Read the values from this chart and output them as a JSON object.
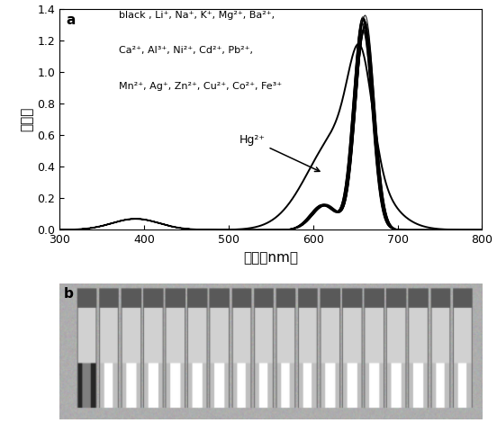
{
  "title_a": "a",
  "title_b": "b",
  "xlabel": "波长（nm）",
  "ylabel": "吸光度",
  "xlim": [
    300,
    800
  ],
  "ylim": [
    0.0,
    1.4
  ],
  "xticks": [
    300,
    400,
    500,
    600,
    700,
    800
  ],
  "yticks": [
    0.0,
    0.2,
    0.4,
    0.6,
    0.8,
    1.0,
    1.2,
    1.4
  ],
  "legend_line1": "black , Li⁺, Na⁺, K⁺, Mg²⁺, Ba²⁺,",
  "legend_line2": "Ca²⁺, Al³⁺, Ni²⁺, Cd²⁺, Pb²⁺,",
  "legend_line3": "Mn²⁺, Ag⁺, Zn²⁺, Cu²⁺, Co²⁺, Fe³⁺",
  "hg_label": "Hg²⁺",
  "bg_color": "#ffffff",
  "line_color": "#000000",
  "photo_bg": "#b0b0b0",
  "vial_dark": "#303030",
  "vial_light": "#d8d8d8",
  "vial_mid": "#909090"
}
